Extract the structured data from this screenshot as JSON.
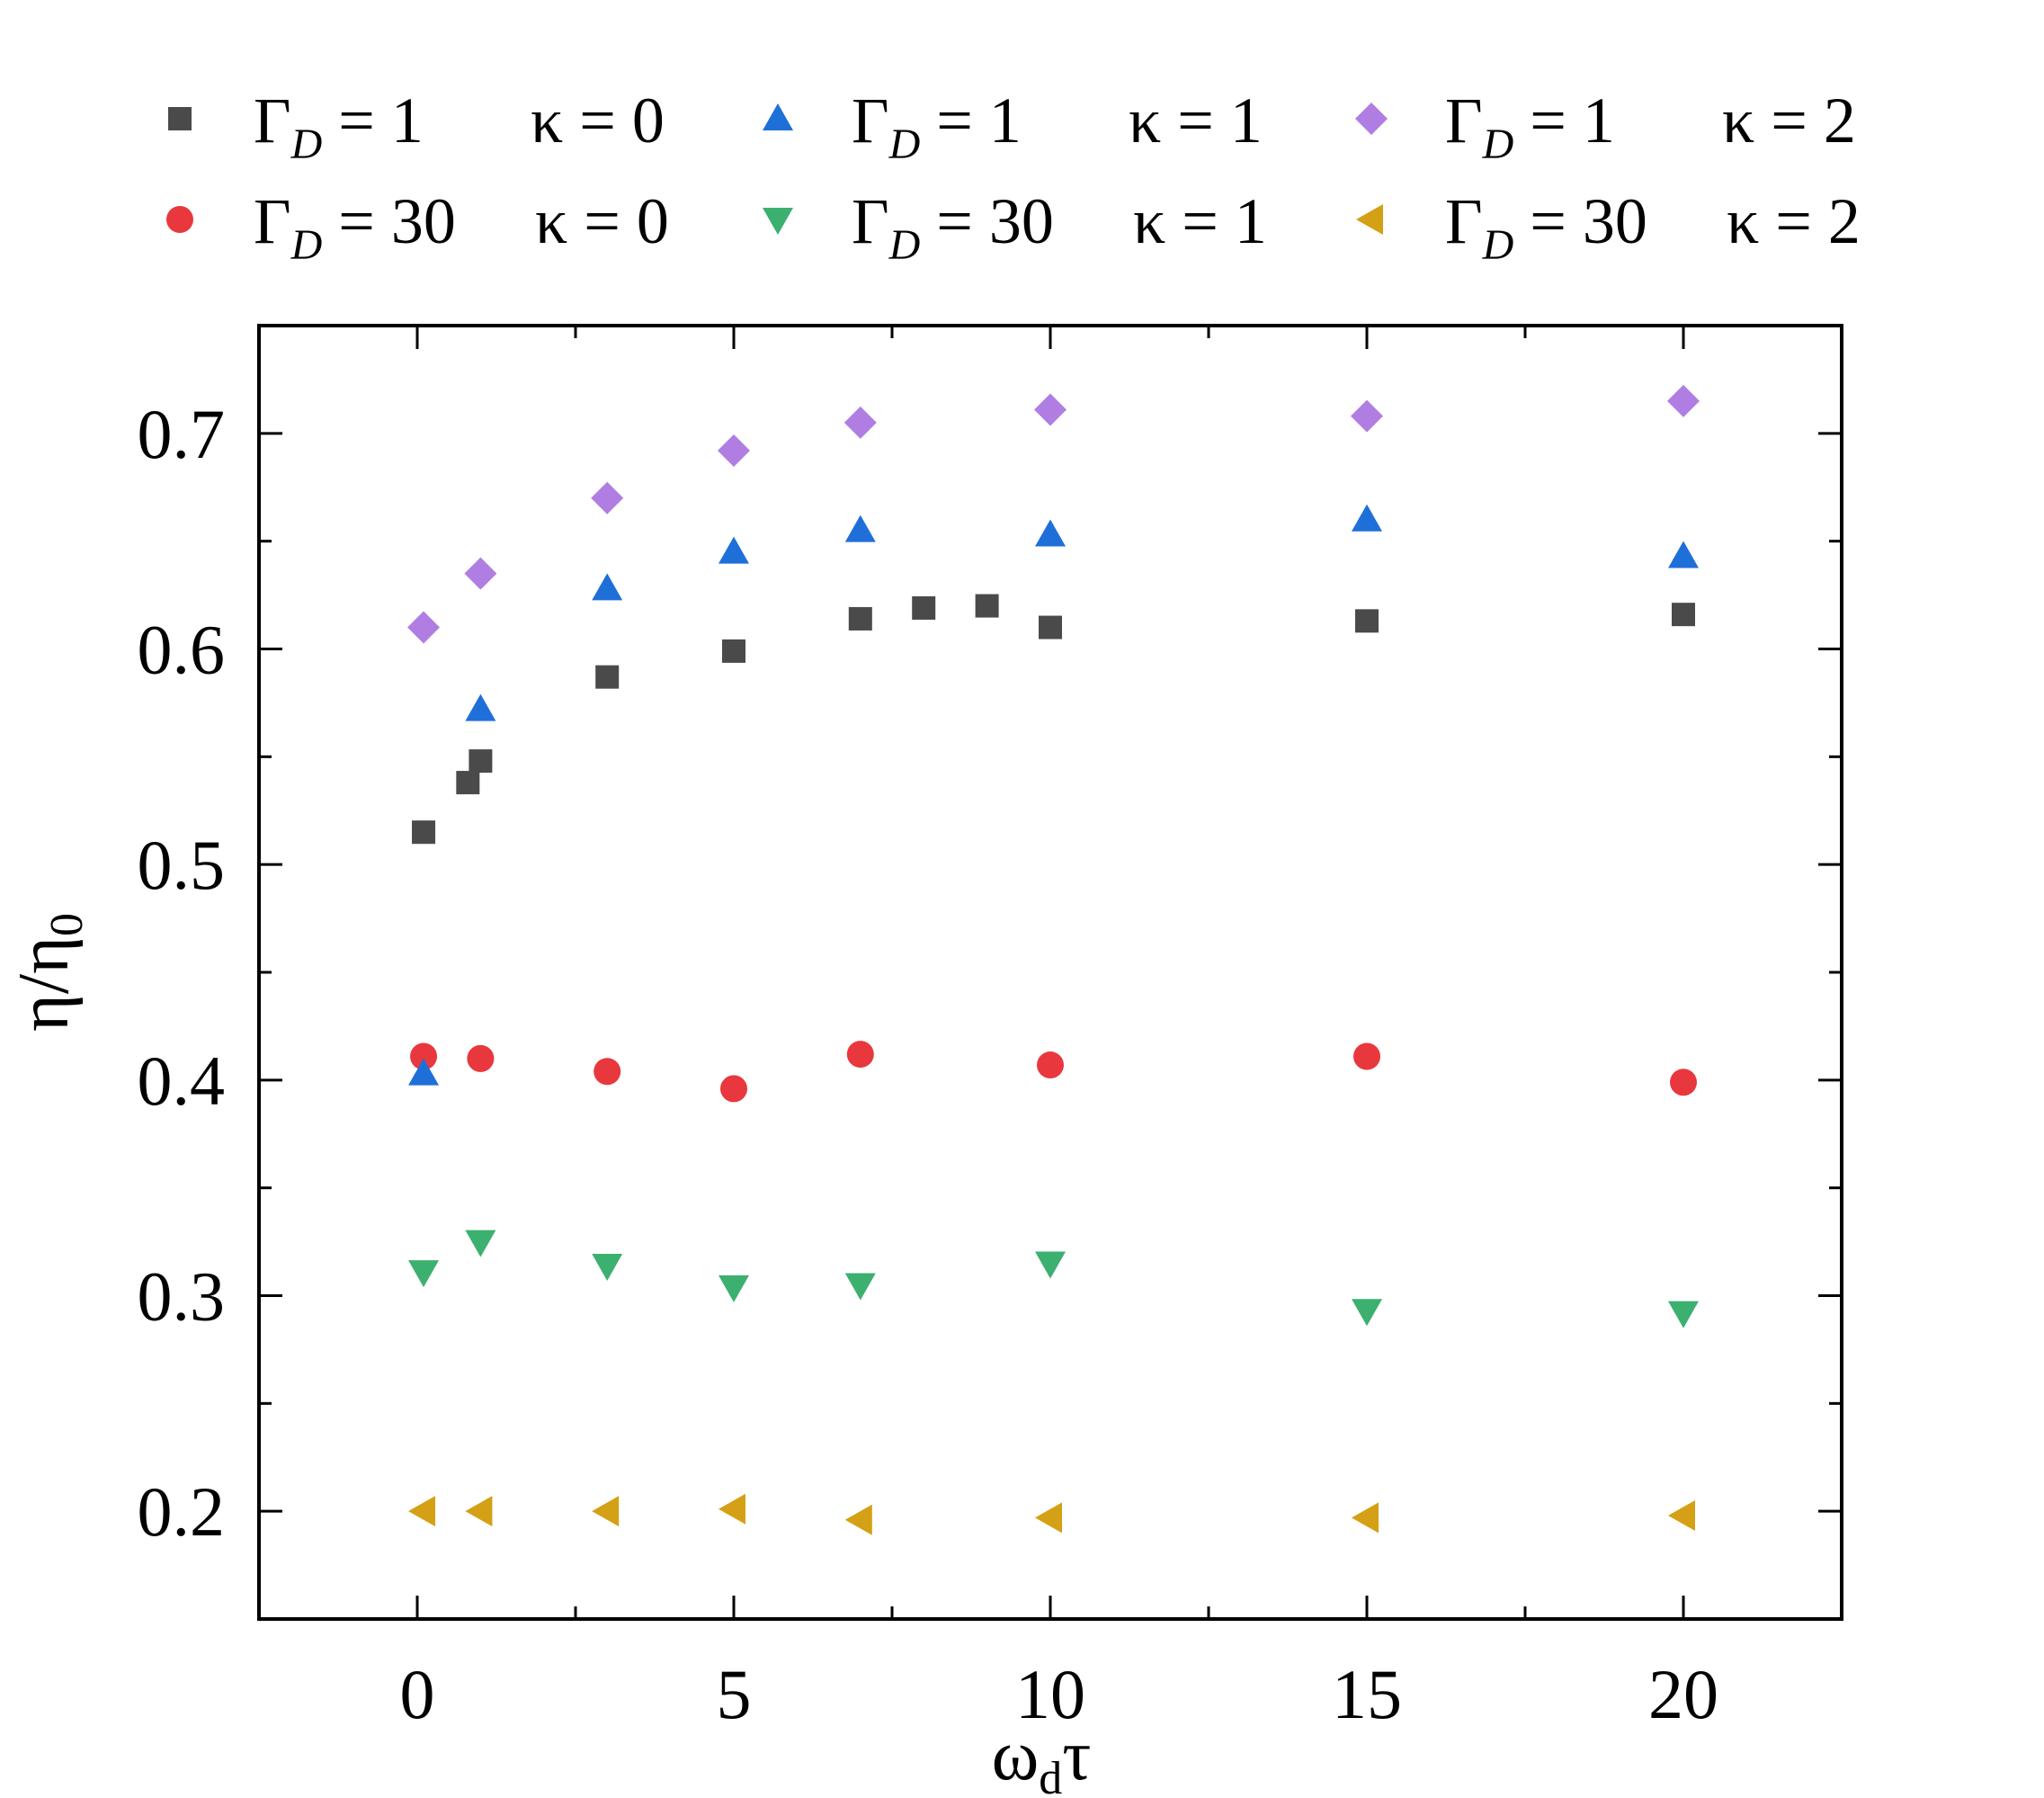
{
  "chart_data": {
    "type": "scatter",
    "title": "",
    "xlabel": {
      "main": "ω",
      "sub": "d",
      "tail": "τ"
    },
    "ylabel": {
      "main": "η/η",
      "sub": "0"
    },
    "xlim": [
      -2.5,
      22.5
    ],
    "ylim": [
      0.15,
      0.75
    ],
    "xticks": [
      0,
      5,
      10,
      15,
      20
    ],
    "xtick_labels": [
      "0",
      "5",
      "10",
      "15",
      "20"
    ],
    "yticks": [
      0.2,
      0.3,
      0.4,
      0.5,
      0.6,
      0.7
    ],
    "ytick_labels": [
      "0.2",
      "0.3",
      "0.4",
      "0.5",
      "0.6",
      "0.7"
    ],
    "grid": false,
    "legend_position": "top",
    "series": [
      {
        "name": "ΓD = 1 κ = 0",
        "legend": {
          "gamma": "Γ",
          "sub": "D",
          "rest": " = 1",
          "kappa": "κ = 0"
        },
        "marker": "square",
        "color": "#4a4a4a",
        "x": [
          0.1,
          0.8,
          1.0,
          3.0,
          5.0,
          7.0,
          8.0,
          9.0,
          10.0,
          15.0,
          20.0
        ],
        "y": [
          0.515,
          0.538,
          0.548,
          0.587,
          0.599,
          0.614,
          0.619,
          0.62,
          0.61,
          0.613,
          0.616
        ]
      },
      {
        "name": "ΓD = 30 κ = 0",
        "legend": {
          "gamma": "Γ",
          "sub": "D",
          "rest": " = 30",
          "kappa": "κ = 0"
        },
        "marker": "circle",
        "color": "#e8383d",
        "x": [
          0.1,
          1.0,
          3.0,
          5.0,
          7.0,
          10.0,
          15.0,
          20.0
        ],
        "y": [
          0.411,
          0.41,
          0.404,
          0.396,
          0.412,
          0.407,
          0.411,
          0.399
        ]
      },
      {
        "name": "ΓD = 1 κ = 1",
        "legend": {
          "gamma": "Γ",
          "sub": "D",
          "rest": " = 1",
          "kappa": "κ = 1"
        },
        "marker": "triangle-up",
        "color": "#1f6fd9",
        "x": [
          0.1,
          1.0,
          3.0,
          5.0,
          7.0,
          10.0,
          15.0,
          20.0
        ],
        "y": [
          0.403,
          0.572,
          0.628,
          0.645,
          0.655,
          0.653,
          0.66,
          0.643
        ]
      },
      {
        "name": "ΓD = 30 κ = 1",
        "legend": {
          "gamma": "Γ",
          "sub": "D",
          "rest": " = 30",
          "kappa": "κ = 1"
        },
        "marker": "triangle-down",
        "color": "#3cb06f",
        "x": [
          0.1,
          1.0,
          3.0,
          5.0,
          7.0,
          10.0,
          15.0,
          20.0
        ],
        "y": [
          0.311,
          0.325,
          0.314,
          0.304,
          0.305,
          0.315,
          0.293,
          0.292
        ]
      },
      {
        "name": "ΓD = 1 κ = 2",
        "legend": {
          "gamma": "Γ",
          "sub": "D",
          "rest": " = 1",
          "kappa": "κ = 2"
        },
        "marker": "diamond",
        "color": "#b07ee3",
        "x": [
          0.1,
          1.0,
          3.0,
          5.0,
          7.0,
          10.0,
          15.0,
          20.0
        ],
        "y": [
          0.61,
          0.635,
          0.67,
          0.692,
          0.705,
          0.711,
          0.708,
          0.715
        ]
      },
      {
        "name": "ΓD = 30 κ = 2",
        "legend": {
          "gamma": "Γ",
          "sub": "D",
          "rest": " = 30",
          "kappa": "κ = 2"
        },
        "marker": "triangle-left",
        "color": "#d4a015",
        "x": [
          0.1,
          1.0,
          3.0,
          5.0,
          7.0,
          10.0,
          15.0,
          20.0
        ],
        "y": [
          0.2,
          0.2,
          0.2,
          0.201,
          0.196,
          0.197,
          0.197,
          0.198
        ]
      }
    ]
  }
}
